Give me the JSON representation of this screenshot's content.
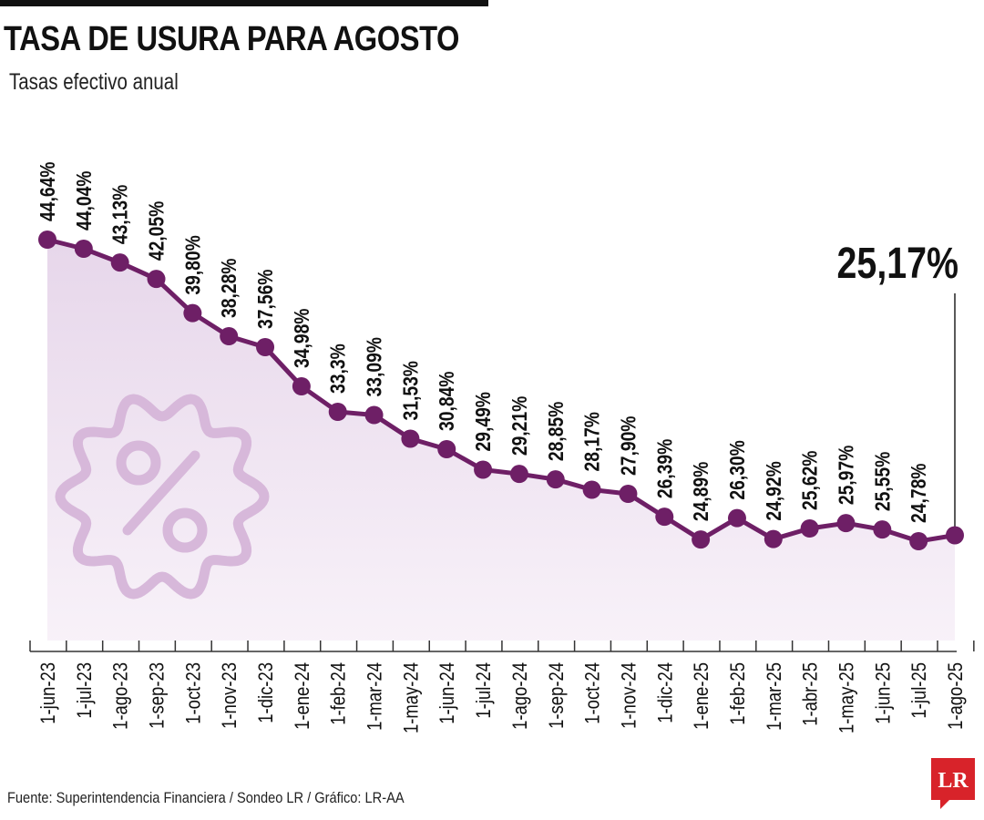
{
  "header": {
    "title": "TASA DE USURA PARA AGOSTO",
    "subtitle": "Tasas efectivo anual"
  },
  "footer": {
    "source": "Fuente: Superintendencia Financiera / Sondeo LR / Gráfico: LR-AA",
    "logo_text": "LR"
  },
  "colors": {
    "line": "#6e1f66",
    "area": "#e9d9ec",
    "icon": "#d7b8da",
    "logo": "#d8232a"
  },
  "chart_data": {
    "type": "line",
    "title": "TASA DE USURA PARA AGOSTO",
    "subtitle": "Tasas efectivo anual",
    "xlabel": "",
    "ylabel": "",
    "ylim": [
      18,
      46
    ],
    "grid": false,
    "categories": [
      "1-jun-23",
      "1-jul-23",
      "1-ago-23",
      "1-sep-23",
      "1-oct-23",
      "1-nov-23",
      "1-dic-23",
      "1-ene-24",
      "1-feb-24",
      "1-mar-24",
      "1-may-24",
      "1-jun-24",
      "1-jul-24",
      "1-ago-24",
      "1-sep-24",
      "1-oct-24",
      "1-nov-24",
      "1-dic-24",
      "1-ene-25",
      "1-feb-25",
      "1-mar-25",
      "1-abr-25",
      "1-may-25",
      "1-jun-25",
      "1-jul-25",
      "1-ago-25"
    ],
    "values": [
      44.64,
      44.04,
      43.13,
      42.05,
      39.8,
      38.28,
      37.56,
      34.98,
      33.3,
      33.09,
      31.53,
      30.84,
      29.49,
      29.21,
      28.85,
      28.17,
      27.9,
      26.39,
      24.89,
      26.3,
      24.92,
      25.62,
      25.97,
      25.55,
      24.78,
      25.17
    ],
    "labels": [
      "44,64%",
      "44,04%",
      "43,13%",
      "42,05%",
      "39,80%",
      "38,28%",
      "37,56%",
      "34,98%",
      "33,3%",
      "33,09%",
      "31,53%",
      "30,84%",
      "29,49%",
      "29,21%",
      "28,85%",
      "28,17%",
      "27,90%",
      "26,39%",
      "24,89%",
      "26,30%",
      "24,92%",
      "25,62%",
      "25,97%",
      "25,55%",
      "24,78%"
    ],
    "highlight_label": "25,17%"
  }
}
